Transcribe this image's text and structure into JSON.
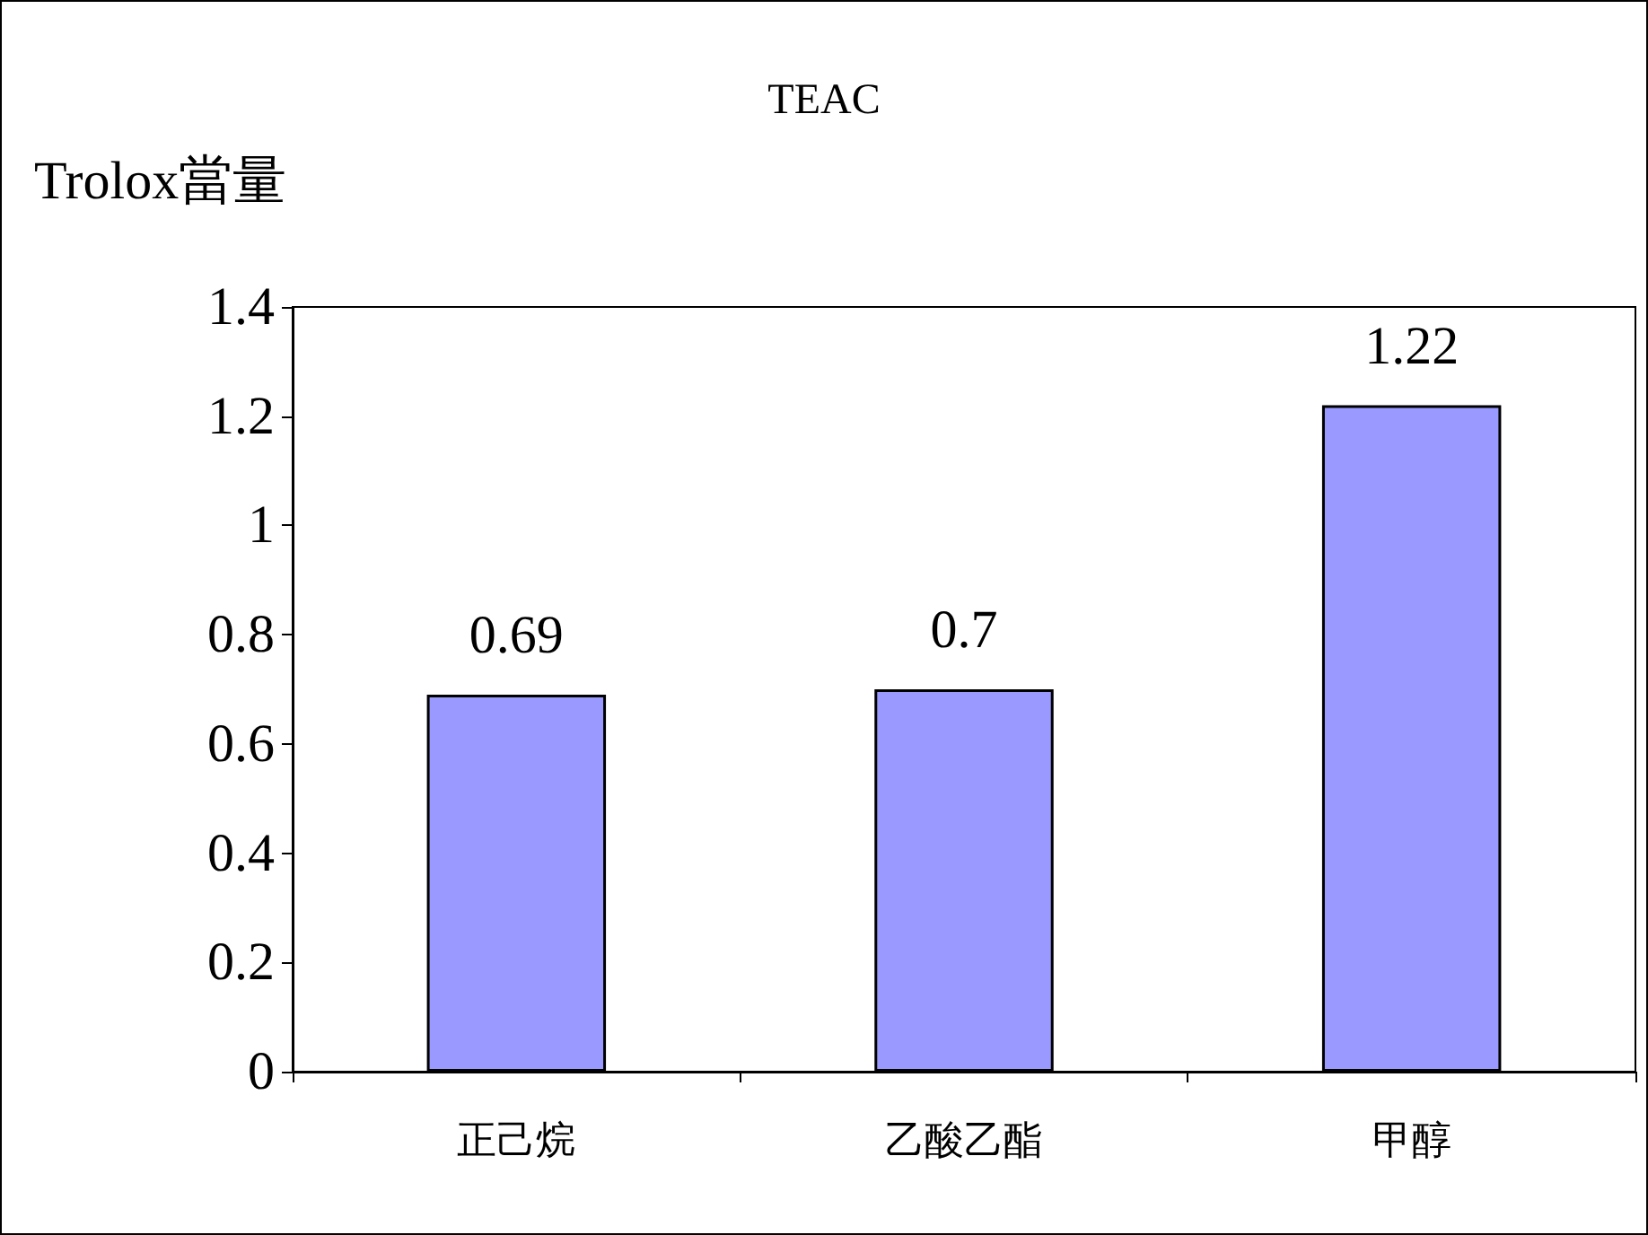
{
  "chart_data": {
    "type": "bar",
    "title": "TEAC",
    "ylabel": "Trolox當量",
    "categories": [
      "正己烷",
      "乙酸乙酯",
      "甲醇"
    ],
    "values": [
      0.69,
      0.7,
      1.22
    ],
    "color": "#9999ff",
    "ylim": [
      0,
      1.4
    ],
    "yticks": [
      0,
      0.2,
      0.4,
      0.6,
      0.8,
      1,
      1.2,
      1.4
    ],
    "grid": false,
    "data_labels": true
  }
}
